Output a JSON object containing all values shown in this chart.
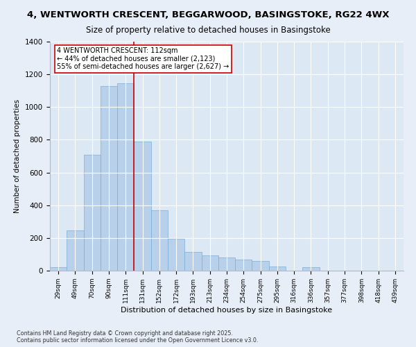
{
  "title1": "4, WENTWORTH CRESCENT, BEGGARWOOD, BASINGSTOKE, RG22 4WX",
  "title2": "Size of property relative to detached houses in Basingstoke",
  "xlabel": "Distribution of detached houses by size in Basingstoke",
  "ylabel": "Number of detached properties",
  "categories": [
    "29sqm",
    "49sqm",
    "70sqm",
    "90sqm",
    "111sqm",
    "131sqm",
    "152sqm",
    "172sqm",
    "193sqm",
    "213sqm",
    "234sqm",
    "254sqm",
    "275sqm",
    "295sqm",
    "316sqm",
    "336sqm",
    "357sqm",
    "377sqm",
    "398sqm",
    "418sqm",
    "439sqm"
  ],
  "values": [
    20,
    245,
    710,
    1130,
    1145,
    790,
    370,
    195,
    115,
    95,
    80,
    70,
    60,
    25,
    0,
    20,
    0,
    0,
    0,
    0,
    0
  ],
  "bar_color": "#b8d0ea",
  "bar_edge_color": "#7aadd4",
  "vline_color": "#cc0000",
  "box_color": "#cc0000",
  "marker_label": "4 WENTWORTH CRESCENT: 112sqm",
  "annotation_line1": "← 44% of detached houses are smaller (2,123)",
  "annotation_line2": "55% of semi-detached houses are larger (2,627) →",
  "ylim": [
    0,
    1400
  ],
  "yticks": [
    0,
    200,
    400,
    600,
    800,
    1000,
    1200,
    1400
  ],
  "fig_bg_color": "#e8eef7",
  "plot_bg_color": "#dce9f5",
  "title1_fontsize": 9.5,
  "title2_fontsize": 8.5,
  "footer": "Contains HM Land Registry data © Crown copyright and database right 2025.\nContains public sector information licensed under the Open Government Licence v3.0."
}
